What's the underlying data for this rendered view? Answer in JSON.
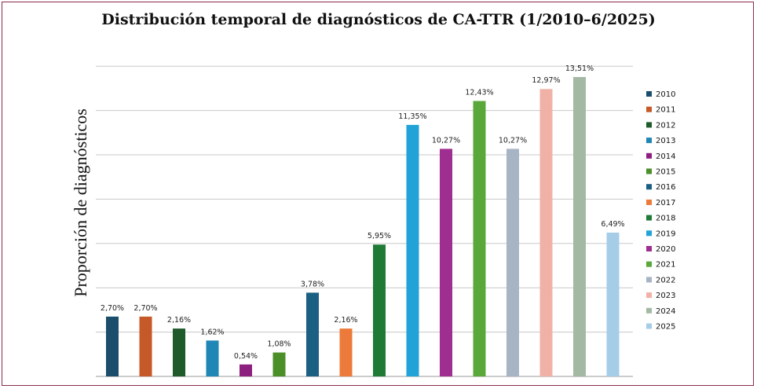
{
  "chart_data": {
    "type": "bar",
    "title": "Distribución temporal de diagnósticos de CA-TTR (1/2010–6/2025)",
    "ylabel": "Proporción de diagnósticos",
    "xlabel": "",
    "ylim": [
      0,
      15
    ],
    "grid": true,
    "legend_position": "right",
    "categories": [
      "2010",
      "2011",
      "2012",
      "2013",
      "2014",
      "2015",
      "2016",
      "2017",
      "2018",
      "2019",
      "2020",
      "2021",
      "2022",
      "2023",
      "2024",
      "2025"
    ],
    "values": [
      2.7,
      2.7,
      2.16,
      1.62,
      0.54,
      1.08,
      3.78,
      2.16,
      5.95,
      11.35,
      10.27,
      12.43,
      10.27,
      12.97,
      13.51,
      6.49
    ],
    "labels": [
      "2,70%",
      "2,70%",
      "2,16%",
      "1,62%",
      "0,54%",
      "1,08%",
      "3,78%",
      "2,16%",
      "5,95%",
      "11,35%",
      "10,27%",
      "12,43%",
      "10,27%",
      "12,97%",
      "13,51%",
      "6,49%"
    ],
    "colors": [
      "#1b4e6b",
      "#c55a28",
      "#1f5a2a",
      "#1f86b6",
      "#8d1f7e",
      "#4a8f28",
      "#1b5f82",
      "#ec7a3a",
      "#1f7a35",
      "#22a3d8",
      "#9e2e90",
      "#5aa83a",
      "#a6b4c4",
      "#f0b2a6",
      "#a4b9a4",
      "#a6cde8"
    ]
  }
}
